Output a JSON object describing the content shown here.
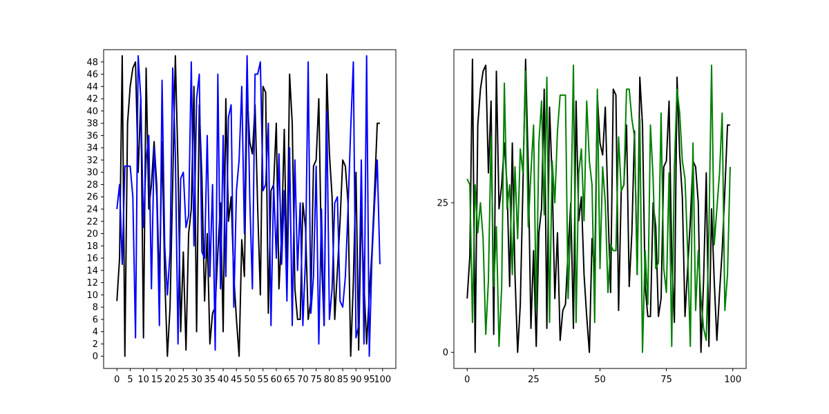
{
  "chart_data": [
    {
      "type": "line",
      "title": "",
      "xlabel": "",
      "ylabel": "",
      "xlim": [
        -5,
        105
      ],
      "ylim": [
        -2,
        50
      ],
      "x_ticks": [
        0,
        5,
        10,
        15,
        20,
        25,
        30,
        35,
        40,
        45,
        50,
        55,
        60,
        65,
        70,
        75,
        80,
        85,
        90,
        95,
        100
      ],
      "x_tick_labels": [
        "0",
        "5",
        "10",
        "15",
        "20",
        "25",
        "30",
        "35",
        "40",
        "45",
        "50",
        "55",
        "60",
        "65",
        "70",
        "75",
        "80",
        "85",
        "90",
        "95",
        "100"
      ],
      "y_ticks": [
        0,
        2,
        4,
        6,
        8,
        10,
        12,
        14,
        16,
        18,
        20,
        22,
        24,
        26,
        28,
        30,
        32,
        34,
        36,
        38,
        40,
        42,
        44,
        46,
        48
      ],
      "y_tick_labels": [
        "0",
        "2",
        "4",
        "6",
        "8",
        "10",
        "12",
        "14",
        "16",
        "18",
        "20",
        "22",
        "24",
        "26",
        "28",
        "30",
        "32",
        "34",
        "36",
        "38",
        "40",
        "42",
        "44",
        "46",
        "48"
      ],
      "grid": false,
      "series": [
        {
          "color": "#000000",
          "x": [
            0,
            1,
            2,
            3,
            4,
            5,
            6,
            7,
            8,
            9,
            10,
            11,
            12,
            13,
            14,
            15,
            16,
            17,
            18,
            19,
            20,
            21,
            22,
            23,
            24,
            25,
            26,
            27,
            28,
            29,
            30,
            31,
            32,
            33,
            34,
            35,
            36,
            37,
            38,
            39,
            40,
            41,
            42,
            43,
            44,
            45,
            46,
            47,
            48,
            49,
            50,
            51,
            52,
            53,
            54,
            55,
            56,
            57,
            58,
            59,
            60,
            61,
            62,
            63,
            64,
            65,
            66,
            67,
            68,
            69,
            70,
            71,
            72,
            73,
            74,
            75,
            76,
            77,
            78,
            79,
            80,
            81,
            82,
            83,
            84,
            85,
            86,
            87,
            88,
            89,
            90,
            91,
            92,
            93,
            94,
            95,
            96,
            97,
            98,
            99
          ],
          "y": [
            9,
            16,
            49,
            0,
            38,
            44,
            47,
            48,
            30,
            42,
            3,
            47,
            24,
            28,
            35,
            28,
            11,
            35,
            13,
            0,
            8,
            28,
            49,
            31,
            4,
            17,
            1,
            20,
            24,
            44,
            4,
            41,
            29,
            9,
            20,
            2,
            7,
            8,
            17,
            25,
            4,
            42,
            22,
            26,
            13,
            6,
            0,
            19,
            13,
            43,
            35,
            33,
            41,
            24,
            10,
            44,
            43,
            7,
            27,
            28,
            38,
            11,
            20,
            37,
            13,
            46,
            38,
            11,
            6,
            6,
            25,
            21,
            6,
            9,
            31,
            32,
            42,
            16,
            5,
            46,
            33,
            26,
            6,
            14,
            22,
            32,
            31,
            25,
            0,
            12,
            30,
            1,
            24,
            12,
            2,
            10,
            17,
            27,
            38,
            38
          ]
        },
        {
          "color": "#0000ff",
          "x": [
            0,
            1,
            2,
            3,
            4,
            5,
            6,
            7,
            8,
            9,
            10,
            11,
            12,
            13,
            14,
            15,
            16,
            17,
            18,
            19,
            20,
            21,
            22,
            23,
            24,
            25,
            26,
            27,
            28,
            29,
            30,
            31,
            32,
            33,
            34,
            35,
            36,
            37,
            38,
            39,
            40,
            41,
            42,
            43,
            44,
            45,
            46,
            47,
            48,
            49,
            50,
            51,
            52,
            53,
            54,
            55,
            56,
            57,
            58,
            59,
            60,
            61,
            62,
            63,
            64,
            65,
            66,
            67,
            68,
            69,
            70,
            71,
            72,
            73,
            74,
            75,
            76,
            77,
            78,
            79,
            80,
            81,
            82,
            83,
            84,
            85,
            86,
            87,
            88,
            89,
            90,
            91,
            92,
            93,
            94,
            95,
            96,
            97,
            98,
            99
          ],
          "y": [
            24,
            28,
            15,
            31,
            31,
            31,
            26,
            3,
            49,
            42,
            21,
            32,
            36,
            11,
            34,
            26,
            5,
            45,
            18,
            10,
            17,
            47,
            33,
            2,
            29,
            30,
            21,
            23,
            48,
            18,
            42,
            46,
            17,
            16,
            36,
            13,
            28,
            1,
            46,
            11,
            36,
            13,
            39,
            41,
            8,
            27,
            32,
            44,
            20,
            49,
            26,
            11,
            46,
            46,
            48,
            27,
            28,
            38,
            5,
            28,
            16,
            33,
            15,
            27,
            9,
            34,
            5,
            32,
            14,
            25,
            5,
            16,
            48,
            7,
            13,
            31,
            2,
            24,
            5,
            40,
            6,
            11,
            25,
            26,
            9,
            8,
            13,
            24,
            37,
            48,
            3,
            5,
            32,
            2,
            49,
            0,
            16,
            25,
            32,
            15
          ]
        }
      ]
    },
    {
      "type": "line",
      "title": "",
      "xlabel": "",
      "ylabel": "",
      "xlim": [
        -5,
        105
      ],
      "ylim": [
        -2.7,
        50.6
      ],
      "x_ticks": [
        0,
        25,
        50,
        75,
        100
      ],
      "x_tick_labels": [
        "0",
        "25",
        "50",
        "75",
        "100"
      ],
      "y_ticks": [
        0,
        25
      ],
      "y_tick_labels": [
        "0",
        "25"
      ],
      "grid": false,
      "series": [
        {
          "color": "#000000",
          "x": [
            0,
            1,
            2,
            3,
            4,
            5,
            6,
            7,
            8,
            9,
            10,
            11,
            12,
            13,
            14,
            15,
            16,
            17,
            18,
            19,
            20,
            21,
            22,
            23,
            24,
            25,
            26,
            27,
            28,
            29,
            30,
            31,
            32,
            33,
            34,
            35,
            36,
            37,
            38,
            39,
            40,
            41,
            42,
            43,
            44,
            45,
            46,
            47,
            48,
            49,
            50,
            51,
            52,
            53,
            54,
            55,
            56,
            57,
            58,
            59,
            60,
            61,
            62,
            63,
            64,
            65,
            66,
            67,
            68,
            69,
            70,
            71,
            72,
            73,
            74,
            75,
            76,
            77,
            78,
            79,
            80,
            81,
            82,
            83,
            84,
            85,
            86,
            87,
            88,
            89,
            90,
            91,
            92,
            93,
            94,
            95,
            96,
            97,
            98,
            99
          ],
          "y": [
            9,
            16,
            49,
            0,
            38,
            44,
            47,
            48,
            30,
            42,
            3,
            47,
            24,
            28,
            35,
            28,
            11,
            35,
            13,
            0,
            8,
            28,
            49,
            31,
            4,
            17,
            1,
            20,
            24,
            44,
            4,
            41,
            29,
            9,
            20,
            2,
            7,
            8,
            17,
            25,
            4,
            42,
            22,
            26,
            13,
            6,
            0,
            19,
            13,
            43,
            35,
            33,
            41,
            24,
            10,
            44,
            43,
            7,
            27,
            28,
            38,
            11,
            20,
            37,
            13,
            46,
            38,
            11,
            6,
            6,
            25,
            21,
            6,
            9,
            31,
            32,
            42,
            16,
            5,
            46,
            33,
            26,
            6,
            14,
            22,
            32,
            31,
            25,
            0,
            12,
            30,
            1,
            24,
            12,
            2,
            10,
            17,
            27,
            38,
            38
          ]
        },
        {
          "color": "#008000",
          "x": [
            0,
            1,
            2,
            3,
            4,
            5,
            6,
            7,
            8,
            9,
            10,
            11,
            12,
            13,
            14,
            15,
            16,
            17,
            18,
            19,
            20,
            21,
            22,
            23,
            24,
            25,
            26,
            27,
            28,
            29,
            30,
            31,
            32,
            33,
            34,
            35,
            36,
            37,
            38,
            39,
            40,
            41,
            42,
            43,
            44,
            45,
            46,
            47,
            48,
            49,
            50,
            51,
            52,
            53,
            54,
            55,
            56,
            57,
            58,
            59,
            60,
            61,
            62,
            63,
            64,
            65,
            66,
            67,
            68,
            69,
            70,
            71,
            72,
            73,
            74,
            75,
            76,
            77,
            78,
            79,
            80,
            81,
            82,
            83,
            84,
            85,
            86,
            87,
            88,
            89,
            90,
            91,
            92,
            93,
            94,
            95,
            96,
            97,
            98,
            99
          ],
          "y": [
            29,
            28,
            5,
            28,
            20,
            25,
            19,
            3,
            12,
            36,
            11,
            21,
            1,
            11,
            45,
            24,
            28,
            13,
            31,
            19,
            34,
            30,
            47,
            21,
            30,
            38,
            7,
            35,
            42,
            23,
            46,
            5,
            32,
            25,
            37,
            43,
            43,
            43,
            9,
            22,
            48,
            5,
            30,
            34,
            22,
            42,
            32,
            28,
            5,
            44,
            14,
            31,
            25,
            10,
            18,
            17,
            17,
            36,
            27,
            28,
            44,
            44,
            39,
            36,
            13,
            39,
            0,
            17,
            8,
            38,
            29,
            14,
            15,
            40,
            14,
            10,
            30,
            1,
            31,
            44,
            40,
            32,
            29,
            17,
            1,
            35,
            7,
            17,
            9,
            4,
            2,
            20,
            48,
            18,
            24,
            30,
            40,
            7,
            13,
            31
          ]
        }
      ]
    }
  ]
}
